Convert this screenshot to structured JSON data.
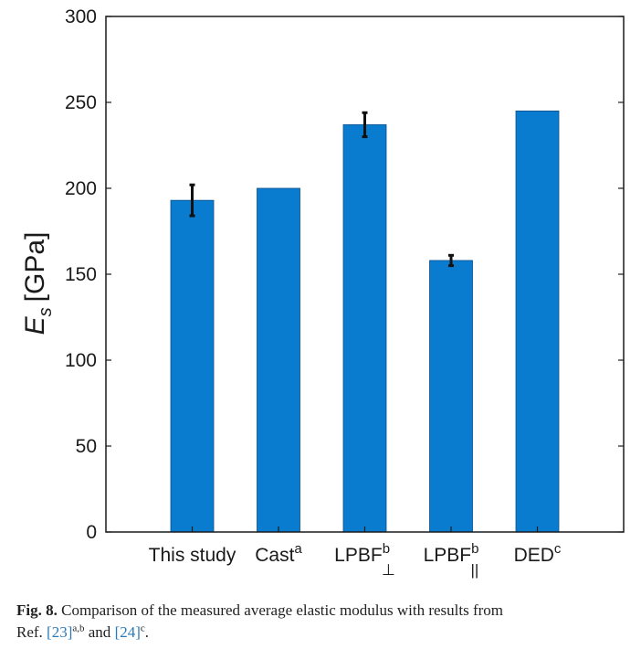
{
  "chart_data": {
    "type": "bar",
    "categories": [
      "This study",
      "Cast",
      "LPBF",
      "LPBF",
      "DED"
    ],
    "category_superscripts": [
      "",
      "a",
      "b",
      "b",
      "c"
    ],
    "category_subscripts": [
      "",
      "",
      "⊥",
      "||",
      ""
    ],
    "values": [
      193,
      200,
      237,
      158,
      245
    ],
    "error_bars": [
      9,
      null,
      7,
      3,
      null
    ],
    "ylim": [
      0,
      300
    ],
    "yticks": [
      0,
      50,
      100,
      150,
      200,
      250,
      300
    ],
    "ylabel_main": "E",
    "ylabel_sub": "s",
    "ylabel_unit": "[GPa]",
    "bar_color": "#0a7ccf",
    "grid": false
  },
  "caption": {
    "figure_label": "Fig. 8.",
    "text_line1": "Comparison of the measured average elastic modulus with results from",
    "ref_prefix": "Ref. ",
    "ref1": "[23]",
    "ref1_sup": "a,b",
    "and_text": " and ",
    "ref2": "[24]",
    "ref2_sup": "c",
    "end": "."
  }
}
